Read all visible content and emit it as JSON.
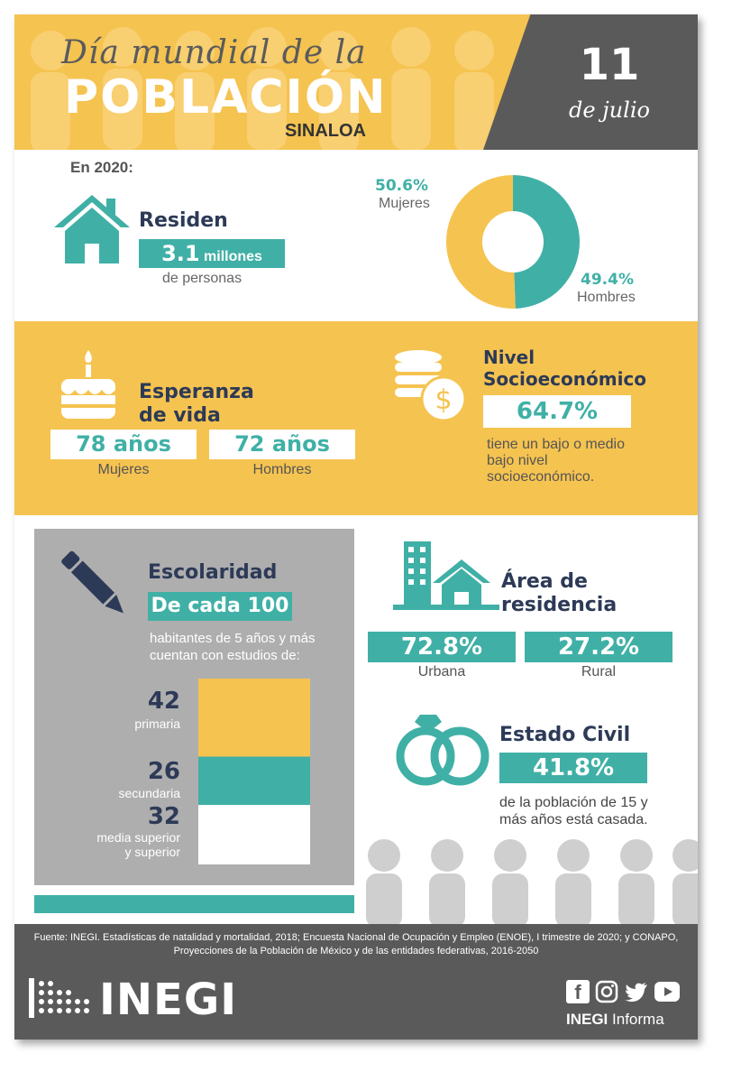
{
  "header": {
    "title_script": "Día mundial de la",
    "title_main": "POBLACIÓN",
    "state": "SINALOA",
    "day": "11",
    "month": "de julio"
  },
  "intro": {
    "year_label": "En 2020:"
  },
  "residents": {
    "heading": "Residen",
    "number": "3.1",
    "unit": "millones",
    "sub": "de personas",
    "icon": "house-icon"
  },
  "gender": {
    "women_pct": "50.6%",
    "women_label": "Mujeres",
    "men_pct": "49.4%",
    "men_label": "Hombres",
    "women_value": 50.6,
    "men_value": 49.4
  },
  "life_expectancy": {
    "heading_1": "Esperanza",
    "heading_2": "de vida",
    "women_value": "78 años",
    "women_label": "Mujeres",
    "men_value": "72 años",
    "men_label": "Hombres",
    "icon": "birthday-cake-icon"
  },
  "socioeconomic": {
    "heading_1": "Nivel",
    "heading_2": "Socioeconómico",
    "value": "64.7%",
    "desc_1": "tiene un bajo o medio",
    "desc_2": "bajo nivel",
    "desc_3": "socioeconómico.",
    "icon": "coins-dollar-icon"
  },
  "schooling": {
    "heading": "Escolaridad",
    "highlight": "De cada 100",
    "desc_1": "habitantes de 5 años y más",
    "desc_2": "cuentan con estudios de:",
    "levels": [
      {
        "value": "42",
        "label": "primaria",
        "n": 42
      },
      {
        "value": "26",
        "label": "secundaria",
        "n": 26
      },
      {
        "value": "32",
        "label_1": "media superior",
        "label_2": "y superior",
        "n": 32
      }
    ],
    "icon": "pencil-icon"
  },
  "residence_area": {
    "heading_1": "Área de",
    "heading_2": "residencia",
    "urban_value": "72.8%",
    "urban_label": "Urbana",
    "rural_value": "27.2%",
    "rural_label": "Rural",
    "icon": "city-house-icon"
  },
  "civil_status": {
    "heading": "Estado Civil",
    "value": "41.8%",
    "desc_1": "de la población de 15 y",
    "desc_2": "más años está casada.",
    "icon": "wedding-rings-icon"
  },
  "footer": {
    "source_1": "Fuente: INEGI. Estadísticas de natalidad y mortalidad, 2018; Encuesta Nacional de Ocupación y Empleo (ENOE), I trimestre de 2020; y CONAPO,",
    "source_2": "Proyecciones de la Población de México y de las entidades federativas, 2016-2050",
    "logo_text": "INEGI",
    "informa_bold": "INEGI",
    "informa_text": "Informa"
  },
  "colors": {
    "yellow": "#f5c350",
    "teal": "#40b0a6",
    "dark_blue": "#2d3a57",
    "grey": "#5a5a5a"
  }
}
